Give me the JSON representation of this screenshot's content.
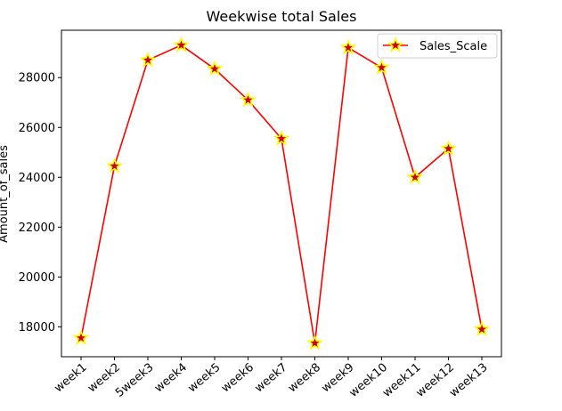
{
  "chart_data": {
    "type": "line",
    "title": "Weekwise total Sales",
    "ylabel": "Amount_of_sales",
    "xlabel": "",
    "categories": [
      "week1",
      "week2",
      "5week3",
      "week4",
      "week5",
      "week6",
      "week7",
      "week8",
      "week9",
      "week10",
      "week11",
      "week12",
      "week13"
    ],
    "series": [
      {
        "name": "Sales_Scale",
        "values": [
          17550,
          24450,
          28700,
          29300,
          28350,
          27100,
          25550,
          17350,
          29200,
          28400,
          24000,
          25150,
          17900
        ]
      }
    ],
    "ylim": [
      16800,
      29900
    ],
    "yticks": [
      18000,
      20000,
      22000,
      24000,
      26000,
      28000
    ],
    "legend_position": "top-right",
    "grid": false,
    "line_color": "#ff0000",
    "marker": "star",
    "marker_fill": "#cc0000",
    "marker_edge": "#ffff00"
  }
}
